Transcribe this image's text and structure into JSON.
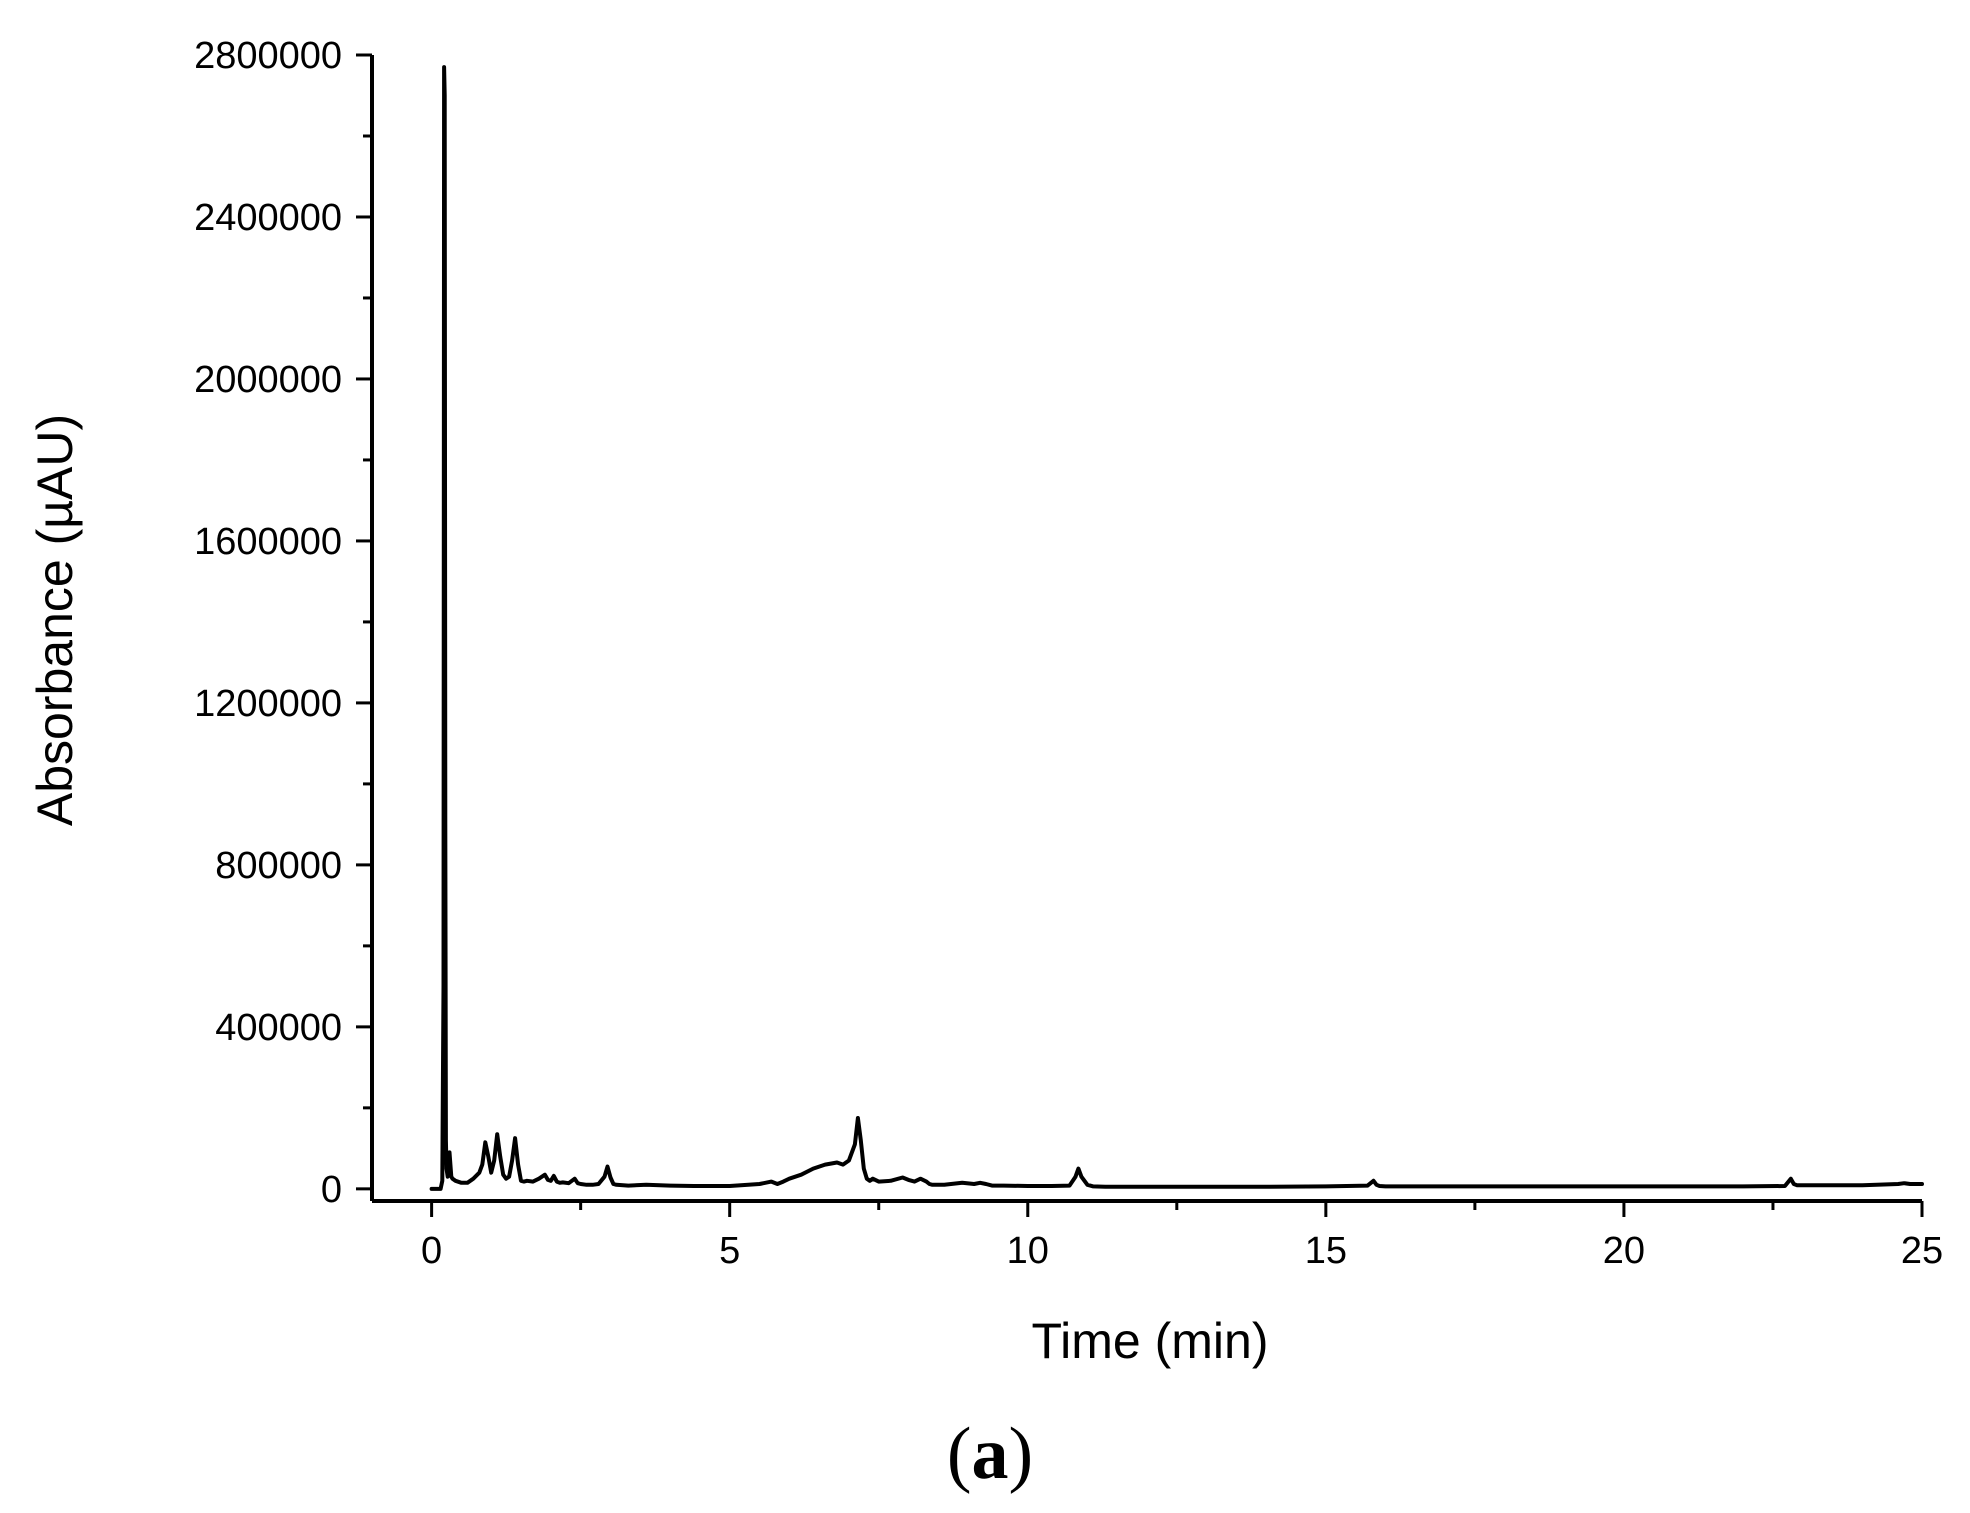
{
  "panel_label": {
    "open": "(",
    "letter": "a",
    "close": ")"
  },
  "colors": {
    "line": "#000000",
    "axis": "#000000",
    "background": "#ffffff"
  },
  "chart_data": {
    "type": "line",
    "title": "",
    "xlabel": "Time (min)",
    "ylabel": "Absorbance (µAU)",
    "xlim": [
      -1,
      25
    ],
    "ylim": [
      -30000,
      2800000
    ],
    "grid": false,
    "legend": "none",
    "x_ticks": [
      0,
      5,
      10,
      15,
      20,
      25
    ],
    "x_tick_labels": [
      "0",
      "5",
      "10",
      "15",
      "20",
      "25"
    ],
    "x_minor_step": 2.5,
    "y_ticks": [
      0,
      400000,
      800000,
      1200000,
      1600000,
      2000000,
      2400000,
      2800000
    ],
    "y_tick_labels": [
      "0",
      "400000",
      "800000",
      "1200000",
      "1600000",
      "2000000",
      "2400000",
      "2800000"
    ],
    "y_minor_step": 200000,
    "series": [
      {
        "x": [
          0.0,
          0.1,
          0.15,
          0.18,
          0.2,
          0.21,
          0.22,
          0.23,
          0.24,
          0.25,
          0.27,
          0.29,
          0.3,
          0.33,
          0.35,
          0.4,
          0.5,
          0.6,
          0.7,
          0.8,
          0.85,
          0.9,
          0.95,
          1.0,
          1.05,
          1.1,
          1.15,
          1.2,
          1.25,
          1.3,
          1.35,
          1.4,
          1.45,
          1.5,
          1.55,
          1.6,
          1.7,
          1.8,
          1.9,
          1.95,
          2.0,
          2.05,
          2.1,
          2.15,
          2.2,
          2.3,
          2.4,
          2.45,
          2.5,
          2.6,
          2.7,
          2.8,
          2.9,
          2.95,
          3.0,
          3.05,
          3.1,
          3.3,
          3.6,
          4.0,
          4.4,
          5.0,
          5.5,
          5.7,
          5.8,
          5.9,
          6.0,
          6.2,
          6.4,
          6.6,
          6.8,
          6.9,
          7.0,
          7.1,
          7.15,
          7.2,
          7.25,
          7.3,
          7.35,
          7.4,
          7.5,
          7.7,
          7.9,
          8.0,
          8.1,
          8.2,
          8.3,
          8.35,
          8.4,
          8.6,
          8.9,
          9.1,
          9.2,
          9.3,
          9.4,
          9.6,
          10.0,
          10.4,
          10.7,
          10.8,
          10.85,
          10.9,
          11.0,
          11.1,
          11.3,
          12.0,
          13.0,
          14.0,
          15.0,
          15.7,
          15.8,
          15.85,
          15.9,
          16.0,
          16.1,
          17.0,
          18.0,
          20.0,
          22.0,
          22.7,
          22.8,
          22.85,
          22.9,
          23.0,
          24.0,
          24.6,
          24.7,
          24.8,
          25.0
        ],
        "y": [
          0,
          0,
          0,
          20000,
          500000,
          2770000,
          2700000,
          900000,
          120000,
          50000,
          30000,
          40000,
          90000,
          30000,
          25000,
          20000,
          15000,
          15000,
          25000,
          40000,
          60000,
          115000,
          80000,
          40000,
          70000,
          135000,
          80000,
          35000,
          25000,
          30000,
          70000,
          125000,
          60000,
          20000,
          18000,
          20000,
          18000,
          25000,
          35000,
          22000,
          20000,
          32000,
          18000,
          15000,
          16000,
          14000,
          25000,
          14000,
          12000,
          10000,
          10000,
          12000,
          30000,
          55000,
          28000,
          12000,
          10000,
          8000,
          10000,
          8000,
          7000,
          7000,
          12000,
          18000,
          12000,
          18000,
          25000,
          35000,
          50000,
          60000,
          65000,
          60000,
          70000,
          110000,
          175000,
          120000,
          50000,
          25000,
          20000,
          25000,
          18000,
          20000,
          28000,
          22000,
          18000,
          25000,
          18000,
          12000,
          10000,
          10000,
          15000,
          12000,
          15000,
          12000,
          8000,
          8000,
          7000,
          7000,
          8000,
          30000,
          50000,
          30000,
          10000,
          6000,
          5000,
          5000,
          5000,
          5000,
          6000,
          8000,
          20000,
          10000,
          7000,
          6000,
          6000,
          6000,
          6000,
          6000,
          6000,
          7000,
          25000,
          12000,
          9000,
          9000,
          9000,
          12000,
          14000,
          12000,
          12000
        ]
      }
    ]
  }
}
